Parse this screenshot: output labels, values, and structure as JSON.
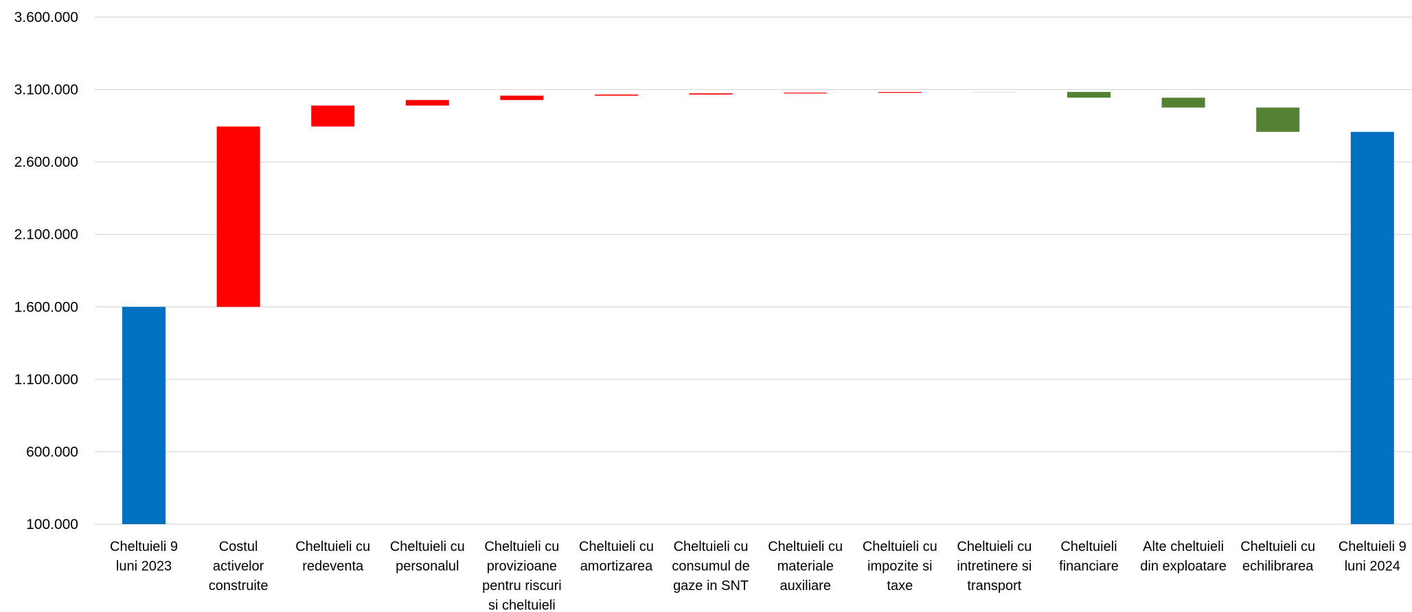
{
  "chart_data": {
    "type": "bar",
    "subtype": "waterfall",
    "title": "",
    "xlabel": "",
    "ylabel": "",
    "ylim": [
      100000,
      3600000
    ],
    "yticks": [
      100000,
      600000,
      1100000,
      1600000,
      2100000,
      2600000,
      3100000,
      3600000
    ],
    "ytick_labels": [
      "100.000",
      "600.000",
      "1.100.000",
      "1.600.000",
      "2.100.000",
      "2.600.000",
      "3.100.000",
      "3.600.000"
    ],
    "grid": true,
    "legend": "none",
    "colors": {
      "total": "#0070C0",
      "increase": "#FF0000",
      "decrease": "#548235"
    },
    "categories": [
      [
        "Cheltuieli 9",
        "luni 2023"
      ],
      [
        "Costul",
        "activelor",
        "construite"
      ],
      [
        "Cheltuieli cu",
        "redeventa"
      ],
      [
        "Cheltuieli cu",
        "personalul"
      ],
      [
        "Cheltuieli cu",
        "provizioane",
        "pentru riscuri",
        "si cheltuieli"
      ],
      [
        "Cheltuieli cu",
        "amortizarea"
      ],
      [
        "Cheltuieli cu",
        "consumul de",
        "gaze in SNT"
      ],
      [
        "Cheltuieli cu",
        "materiale",
        "auxiliare"
      ],
      [
        "Cheltuieli cu",
        "impozite si",
        "taxe"
      ],
      [
        "Cheltuieli cu",
        "intretinere si",
        "transport"
      ],
      [
        "Cheltuieli",
        "financiare"
      ],
      [
        "Alte cheltuieli",
        "din exploatare"
      ],
      [
        "Cheltuieli cu",
        "echilibrarea"
      ],
      [
        "Cheltuieli 9",
        "luni 2024"
      ]
    ],
    "bars": [
      {
        "kind": "total",
        "start": 0,
        "end": 1600000
      },
      {
        "kind": "increase",
        "start": 1600000,
        "end": 2845000
      },
      {
        "kind": "increase",
        "start": 2845000,
        "end": 2990000
      },
      {
        "kind": "increase",
        "start": 2990000,
        "end": 3028000
      },
      {
        "kind": "increase",
        "start": 3028000,
        "end": 3058000
      },
      {
        "kind": "increase",
        "start": 3058000,
        "end": 3066000
      },
      {
        "kind": "increase",
        "start": 3066000,
        "end": 3074000
      },
      {
        "kind": "increase",
        "start": 3074000,
        "end": 3079000
      },
      {
        "kind": "increase",
        "start": 3079000,
        "end": 3083000
      },
      {
        "kind": "increase",
        "start": 3083000,
        "end": 3084000
      },
      {
        "kind": "decrease",
        "start": 3084000,
        "end": 3044000
      },
      {
        "kind": "decrease",
        "start": 3044000,
        "end": 2976000
      },
      {
        "kind": "decrease",
        "start": 2976000,
        "end": 2808000
      },
      {
        "kind": "total",
        "start": 0,
        "end": 2808000
      }
    ]
  }
}
